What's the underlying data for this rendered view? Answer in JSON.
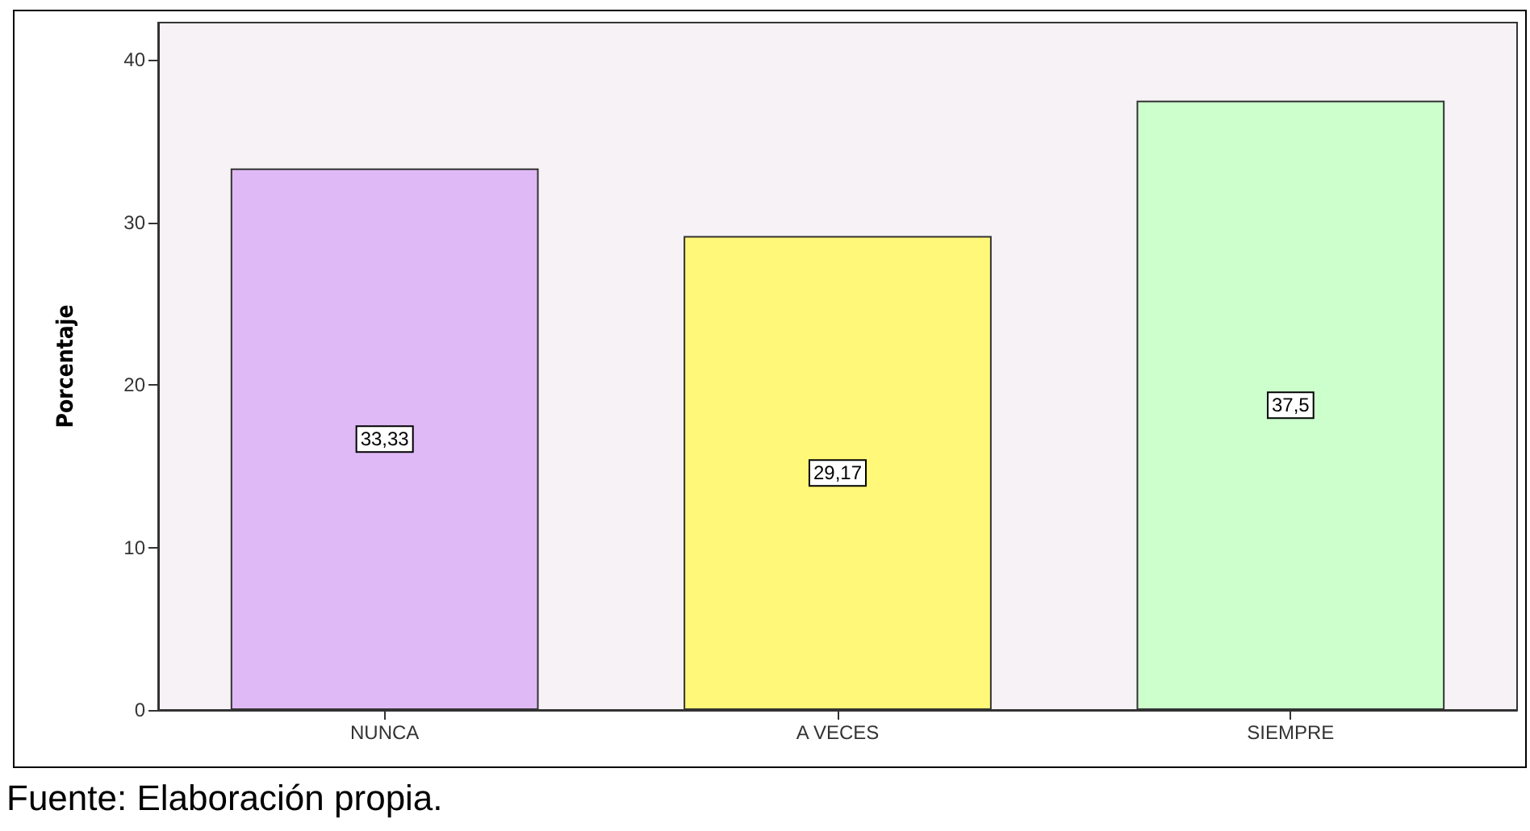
{
  "chart_data": {
    "type": "bar",
    "ylabel": "Porcentaje",
    "categories": [
      "NUNCA",
      "A VECES",
      "SIEMPRE"
    ],
    "values": [
      33.33,
      29.17,
      37.5
    ],
    "colors": [
      "#dfb9f5",
      "#fff878",
      "#ccffcc"
    ],
    "value_labels": [
      "33,33",
      "29,17",
      "37,5"
    ],
    "ylim": [
      0,
      42.3
    ],
    "yticks": [
      0,
      10,
      20,
      30,
      40
    ],
    "grid": false,
    "annotations": [
      "Fuente: Elaboración propia."
    ]
  }
}
